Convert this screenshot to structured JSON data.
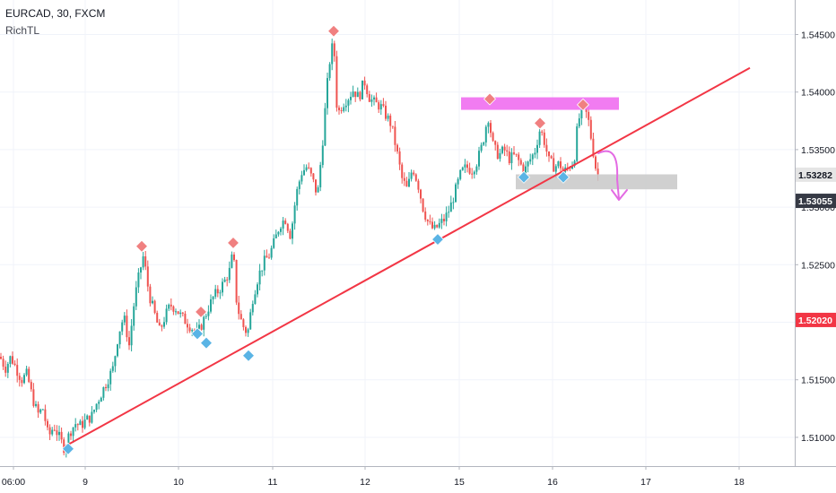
{
  "header": {
    "symbol_line": "EURCAD, 30, FXCM",
    "indicator": "RichTL"
  },
  "chart_data": {
    "type": "candlestick",
    "symbol": "EURCAD",
    "timeframe": "30",
    "source": "FXCM",
    "x_ticks": [
      "06:00",
      "9",
      "10",
      "11",
      "12",
      "15",
      "16",
      "17",
      "18"
    ],
    "y_ticks": [
      "1.54500",
      "1.54000",
      "1.53500",
      "1.53000",
      "1.52500",
      "1.52000",
      "1.51500",
      "1.51000"
    ],
    "ylim": [
      1.5075,
      1.548
    ],
    "price_badges": [
      {
        "text": "1.53282",
        "value": 1.53282,
        "style": "gray"
      },
      {
        "text": "1.53055",
        "value": 1.53055,
        "style": "dark"
      },
      {
        "text": "1.52020",
        "value": 1.5202,
        "style": "red"
      }
    ],
    "candles_path": [
      [
        0,
        1.517
      ],
      [
        6,
        1.516
      ],
      [
        12,
        1.517
      ],
      [
        18,
        1.516
      ],
      [
        24,
        1.515
      ],
      [
        30,
        1.5155
      ],
      [
        36,
        1.5135
      ],
      [
        42,
        1.512
      ],
      [
        48,
        1.5125
      ],
      [
        54,
        1.51
      ],
      [
        60,
        1.511
      ],
      [
        66,
        1.51
      ],
      [
        72,
        1.509
      ],
      [
        78,
        1.5105
      ],
      [
        84,
        1.5112
      ],
      [
        90,
        1.511
      ],
      [
        96,
        1.5115
      ],
      [
        102,
        1.5118
      ],
      [
        108,
        1.513
      ],
      [
        114,
        1.514
      ],
      [
        120,
        1.515
      ],
      [
        126,
        1.516
      ],
      [
        132,
        1.519
      ],
      [
        138,
        1.5205
      ],
      [
        144,
        1.518
      ],
      [
        150,
        1.522
      ],
      [
        156,
        1.5245
      ],
      [
        160,
        1.5258
      ],
      [
        166,
        1.5225
      ],
      [
        172,
        1.5208
      ],
      [
        178,
        1.5192
      ],
      [
        184,
        1.5205
      ],
      [
        190,
        1.5215
      ],
      [
        196,
        1.5212
      ],
      [
        202,
        1.5205
      ],
      [
        208,
        1.52
      ],
      [
        214,
        1.5195
      ],
      [
        220,
        1.519
      ],
      [
        226,
        1.52
      ],
      [
        232,
        1.5212
      ],
      [
        238,
        1.5222
      ],
      [
        244,
        1.5228
      ],
      [
        250,
        1.5235
      ],
      [
        256,
        1.5245
      ],
      [
        260,
        1.5262
      ],
      [
        264,
        1.5215
      ],
      [
        270,
        1.5198
      ],
      [
        276,
        1.519
      ],
      [
        282,
        1.5222
      ],
      [
        288,
        1.524
      ],
      [
        294,
        1.5252
      ],
      [
        300,
        1.5258
      ],
      [
        306,
        1.527
      ],
      [
        312,
        1.5285
      ],
      [
        318,
        1.529
      ],
      [
        324,
        1.5275
      ],
      [
        330,
        1.531
      ],
      [
        336,
        1.533
      ],
      [
        342,
        1.5335
      ],
      [
        348,
        1.5325
      ],
      [
        354,
        1.531
      ],
      [
        360,
        1.536
      ],
      [
        364,
        1.54
      ],
      [
        368,
        1.543
      ],
      [
        372,
        1.5445
      ],
      [
        376,
        1.538
      ],
      [
        382,
        1.539
      ],
      [
        388,
        1.5395
      ],
      [
        394,
        1.5402
      ],
      [
        400,
        1.5395
      ],
      [
        406,
        1.541
      ],
      [
        412,
        1.5395
      ],
      [
        418,
        1.539
      ],
      [
        424,
        1.5388
      ],
      [
        430,
        1.538
      ],
      [
        436,
        1.5372
      ],
      [
        442,
        1.535
      ],
      [
        448,
        1.5325
      ],
      [
        454,
        1.5315
      ],
      [
        460,
        1.5335
      ],
      [
        466,
        1.532
      ],
      [
        472,
        1.5298
      ],
      [
        478,
        1.5285
      ],
      [
        484,
        1.528
      ],
      [
        490,
        1.5285
      ],
      [
        496,
        1.529
      ],
      [
        502,
        1.53
      ],
      [
        508,
        1.5315
      ],
      [
        514,
        1.533
      ],
      [
        520,
        1.5335
      ],
      [
        526,
        1.5332
      ],
      [
        532,
        1.534
      ],
      [
        538,
        1.5355
      ],
      [
        544,
        1.538
      ],
      [
        550,
        1.5352
      ],
      [
        556,
        1.5345
      ],
      [
        562,
        1.535
      ],
      [
        568,
        1.5342
      ],
      [
        574,
        1.5345
      ],
      [
        580,
        1.5338
      ],
      [
        584,
        1.533
      ],
      [
        590,
        1.534
      ],
      [
        596,
        1.5348
      ],
      [
        602,
        1.5368
      ],
      [
        606,
        1.536
      ],
      [
        612,
        1.534
      ],
      [
        618,
        1.5335
      ],
      [
        624,
        1.5338
      ],
      [
        628,
        1.533
      ],
      [
        634,
        1.5335
      ],
      [
        640,
        1.534
      ],
      [
        644,
        1.5372
      ],
      [
        650,
        1.539
      ],
      [
        656,
        1.5375
      ],
      [
        660,
        1.5355
      ],
      [
        664,
        1.5335
      ],
      [
        668,
        1.5325
      ]
    ],
    "trendline": {
      "from": [
        72,
        1.5092
      ],
      "to": [
        836,
        1.5421
      ],
      "color": "#f23645"
    },
    "resistance_zone": {
      "x0": 514,
      "x1": 690,
      "y0": 1.539,
      "y1": 1.5385,
      "color": "#f06ef0"
    },
    "support_zone": {
      "x0": 575,
      "x1": 755,
      "y0": 1.53285,
      "y1": 1.53155,
      "color": "#c8c8c8"
    },
    "pivot_highs": [
      [
        158,
        1.5266
      ],
      [
        224,
        1.5209
      ],
      [
        260,
        1.5269
      ],
      [
        372,
        1.5453
      ],
      [
        546,
        1.5394
      ],
      [
        602,
        1.5373
      ],
      [
        650,
        1.5389
      ]
    ],
    "pivot_lows": [
      [
        76,
        1.509
      ],
      [
        220,
        1.519
      ],
      [
        230,
        1.5182
      ],
      [
        277,
        1.5171
      ],
      [
        488,
        1.5272
      ],
      [
        584,
        1.5326
      ],
      [
        628,
        1.5326
      ]
    ],
    "colors": {
      "up": "#26a69a",
      "down": "#ef5350",
      "pivot_high": "#f08080",
      "pivot_low": "#5ab4e5",
      "arrow": "#e36ae3"
    }
  }
}
